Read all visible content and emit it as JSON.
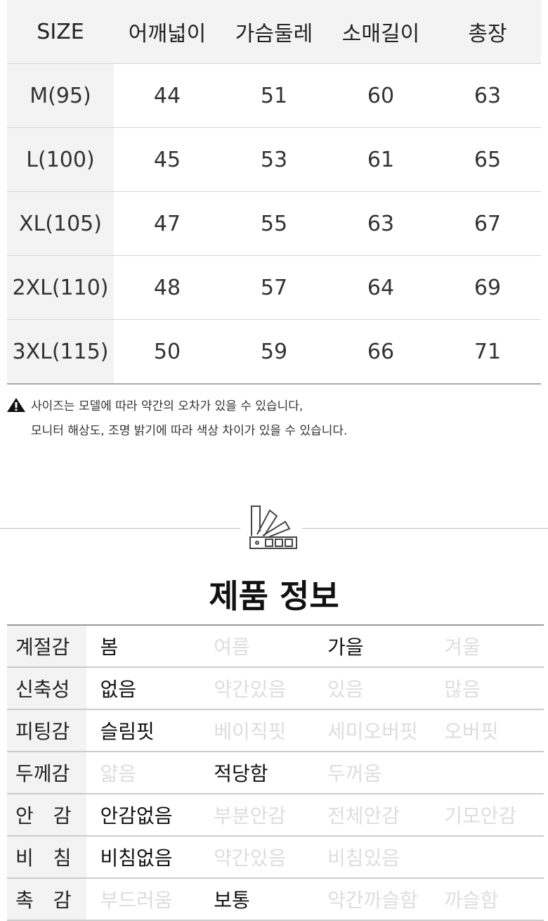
{
  "size_table": {
    "headers": [
      "SIZE",
      "어깨넓이",
      "가슴둘레",
      "소매길이",
      "총장"
    ],
    "rows": [
      [
        "M(95)",
        "44",
        "51",
        "60",
        "63"
      ],
      [
        "L(100)",
        "45",
        "53",
        "61",
        "65"
      ],
      [
        "XL(105)",
        "47",
        "55",
        "63",
        "67"
      ],
      [
        "2XL(110)",
        "48",
        "57",
        "64",
        "69"
      ],
      [
        "3XL(115)",
        "50",
        "59",
        "66",
        "71"
      ]
    ]
  },
  "notice": {
    "icon": "warning-icon",
    "line1": "사이즈는 모델에 따라 약간의 오차가 있을 수 있습니다,",
    "line2": "모니터 해상도, 조명 밝기에 따라 색상 차이가 있을 수 있습니다."
  },
  "section": {
    "icon": "color-swatch-icon",
    "title": "제품 정보"
  },
  "product_info": [
    {
      "label": "계절감",
      "options": [
        "봄",
        "여름",
        "가을",
        "겨울"
      ],
      "selected": [
        0,
        2
      ]
    },
    {
      "label": "신축성",
      "options": [
        "없음",
        "약간있음",
        "있음",
        "많음"
      ],
      "selected": [
        0
      ]
    },
    {
      "label": "피팅감",
      "options": [
        "슬림핏",
        "베이직핏",
        "세미오버핏",
        "오버핏"
      ],
      "selected": [
        0
      ]
    },
    {
      "label": "두께감",
      "options": [
        "얇음",
        "적당함",
        "두꺼움",
        ""
      ],
      "selected": [
        1
      ]
    },
    {
      "label": "안　감",
      "options": [
        "안감없음",
        "부분안감",
        "전체안감",
        "기모안감"
      ],
      "selected": [
        0
      ]
    },
    {
      "label": "비　침",
      "options": [
        "비침없음",
        "약간있음",
        "비침있음",
        ""
      ],
      "selected": [
        0
      ]
    },
    {
      "label": "촉　감",
      "options": [
        "부드러움",
        "보통",
        "약간까슬함",
        "까슬함"
      ],
      "selected": [
        1
      ]
    }
  ]
}
